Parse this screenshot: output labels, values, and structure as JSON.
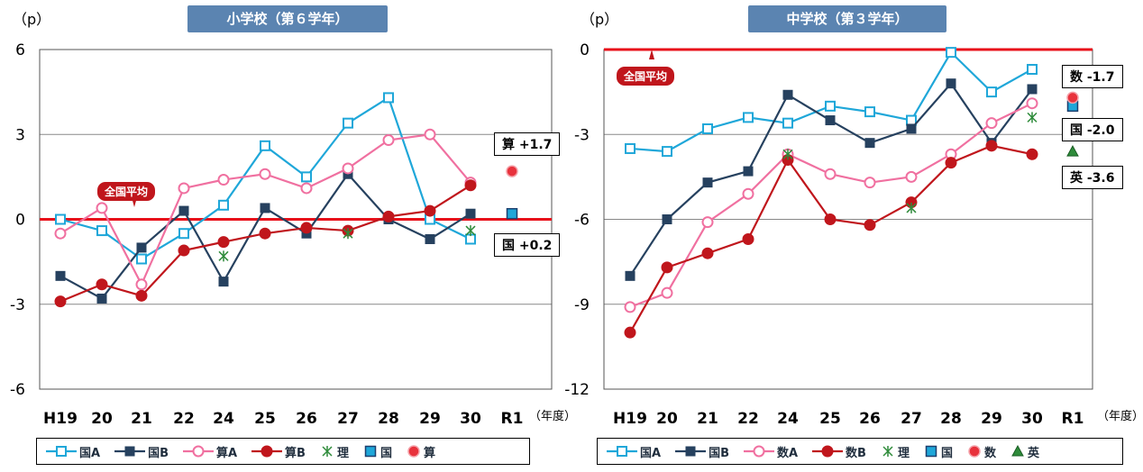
{
  "chart_data": [
    {
      "type": "line",
      "title": "小学校（第６学年）",
      "unit_label": "（p）",
      "year_unit": "（年度）",
      "categories": [
        "H19",
        "20",
        "21",
        "22",
        "24",
        "25",
        "26",
        "27",
        "28",
        "29",
        "30",
        "R1"
      ],
      "ylim": [
        -6,
        6
      ],
      "yticks": [
        "6",
        "3",
        "0",
        "-3",
        "-6"
      ],
      "avg_label": "全国平均",
      "series": [
        {
          "name": "国A",
          "color": "#1fa7d9",
          "marker": "square-open",
          "values": [
            0.0,
            -0.4,
            -1.4,
            -0.5,
            0.5,
            2.6,
            1.5,
            3.4,
            4.3,
            0.0,
            -0.7,
            null
          ]
        },
        {
          "name": "国B",
          "color": "#26415f",
          "marker": "square-filled",
          "values": [
            -2.0,
            -2.8,
            -1.0,
            0.3,
            -2.2,
            0.4,
            -0.5,
            1.6,
            0.0,
            -0.7,
            0.2,
            null
          ]
        },
        {
          "name": "算A",
          "color": "#f070a0",
          "marker": "circle-open",
          "values": [
            -0.5,
            0.4,
            -2.3,
            1.1,
            1.4,
            1.6,
            1.1,
            1.8,
            2.8,
            3.0,
            1.3,
            null
          ]
        },
        {
          "name": "算B",
          "color": "#c0161c",
          "marker": "circle-filled",
          "values": [
            -2.9,
            -2.3,
            -2.7,
            -1.1,
            -0.8,
            -0.5,
            -0.3,
            -0.4,
            0.1,
            0.3,
            1.2,
            null
          ]
        },
        {
          "name": "理",
          "color": "#2e8b3a",
          "marker": "asterisk",
          "values": [
            null,
            null,
            null,
            null,
            -1.3,
            null,
            null,
            -0.5,
            null,
            null,
            -0.4,
            null
          ]
        },
        {
          "name": "国",
          "color": "#1fa7d9",
          "marker": "square-blue",
          "values": [
            null,
            null,
            null,
            null,
            null,
            null,
            null,
            null,
            null,
            null,
            null,
            0.2
          ]
        },
        {
          "name": "算",
          "color": "#e8323c",
          "marker": "circle-red",
          "values": [
            null,
            null,
            null,
            null,
            null,
            null,
            null,
            null,
            null,
            null,
            null,
            1.7
          ]
        }
      ],
      "callouts": [
        "算 +1.7",
        "国 +0.2"
      ]
    },
    {
      "type": "line",
      "title": "中学校（第３学年）",
      "unit_label": "（p）",
      "year_unit": "（年度）",
      "categories": [
        "H19",
        "20",
        "21",
        "22",
        "24",
        "25",
        "26",
        "27",
        "28",
        "29",
        "30",
        "R1"
      ],
      "ylim": [
        -12,
        0
      ],
      "yticks": [
        "0",
        "-3",
        "-6",
        "-9",
        "-12"
      ],
      "avg_label": "全国平均",
      "series": [
        {
          "name": "国A",
          "color": "#1fa7d9",
          "marker": "square-open",
          "values": [
            -3.5,
            -3.6,
            -2.8,
            -2.4,
            -2.6,
            -2.0,
            -2.2,
            -2.5,
            -0.1,
            -1.5,
            -0.7,
            null
          ]
        },
        {
          "name": "国B",
          "color": "#26415f",
          "marker": "square-filled",
          "values": [
            -8.0,
            -6.0,
            -4.7,
            -4.3,
            -1.6,
            -2.5,
            -3.3,
            -2.8,
            -1.2,
            -3.3,
            -1.4,
            null
          ]
        },
        {
          "name": "数A",
          "color": "#f070a0",
          "marker": "circle-open",
          "values": [
            -9.1,
            -8.6,
            -6.1,
            -5.1,
            -3.7,
            -4.4,
            -4.7,
            -4.5,
            -3.7,
            -2.6,
            -1.9,
            null
          ]
        },
        {
          "name": "数B",
          "color": "#c0161c",
          "marker": "circle-filled",
          "values": [
            -10.0,
            -7.7,
            -7.2,
            -6.7,
            -3.9,
            -6.0,
            -6.2,
            -5.4,
            -4.0,
            -3.4,
            -3.7,
            null
          ]
        },
        {
          "name": "理",
          "color": "#2e8b3a",
          "marker": "asterisk",
          "values": [
            null,
            null,
            null,
            null,
            -3.7,
            null,
            null,
            -5.6,
            null,
            null,
            -2.4,
            null
          ]
        },
        {
          "name": "国",
          "color": "#1fa7d9",
          "marker": "square-blue",
          "values": [
            null,
            null,
            null,
            null,
            null,
            null,
            null,
            null,
            null,
            null,
            null,
            -2.0
          ]
        },
        {
          "name": "数",
          "color": "#e8323c",
          "marker": "circle-red",
          "values": [
            null,
            null,
            null,
            null,
            null,
            null,
            null,
            null,
            null,
            null,
            null,
            -1.7
          ]
        },
        {
          "name": "英",
          "color": "#2e8b3a",
          "marker": "triangle",
          "values": [
            null,
            null,
            null,
            null,
            null,
            null,
            null,
            null,
            null,
            null,
            null,
            -3.6
          ]
        }
      ],
      "callouts": [
        "数 -1.7",
        "国 -2.0",
        "英 -3.6"
      ]
    }
  ]
}
